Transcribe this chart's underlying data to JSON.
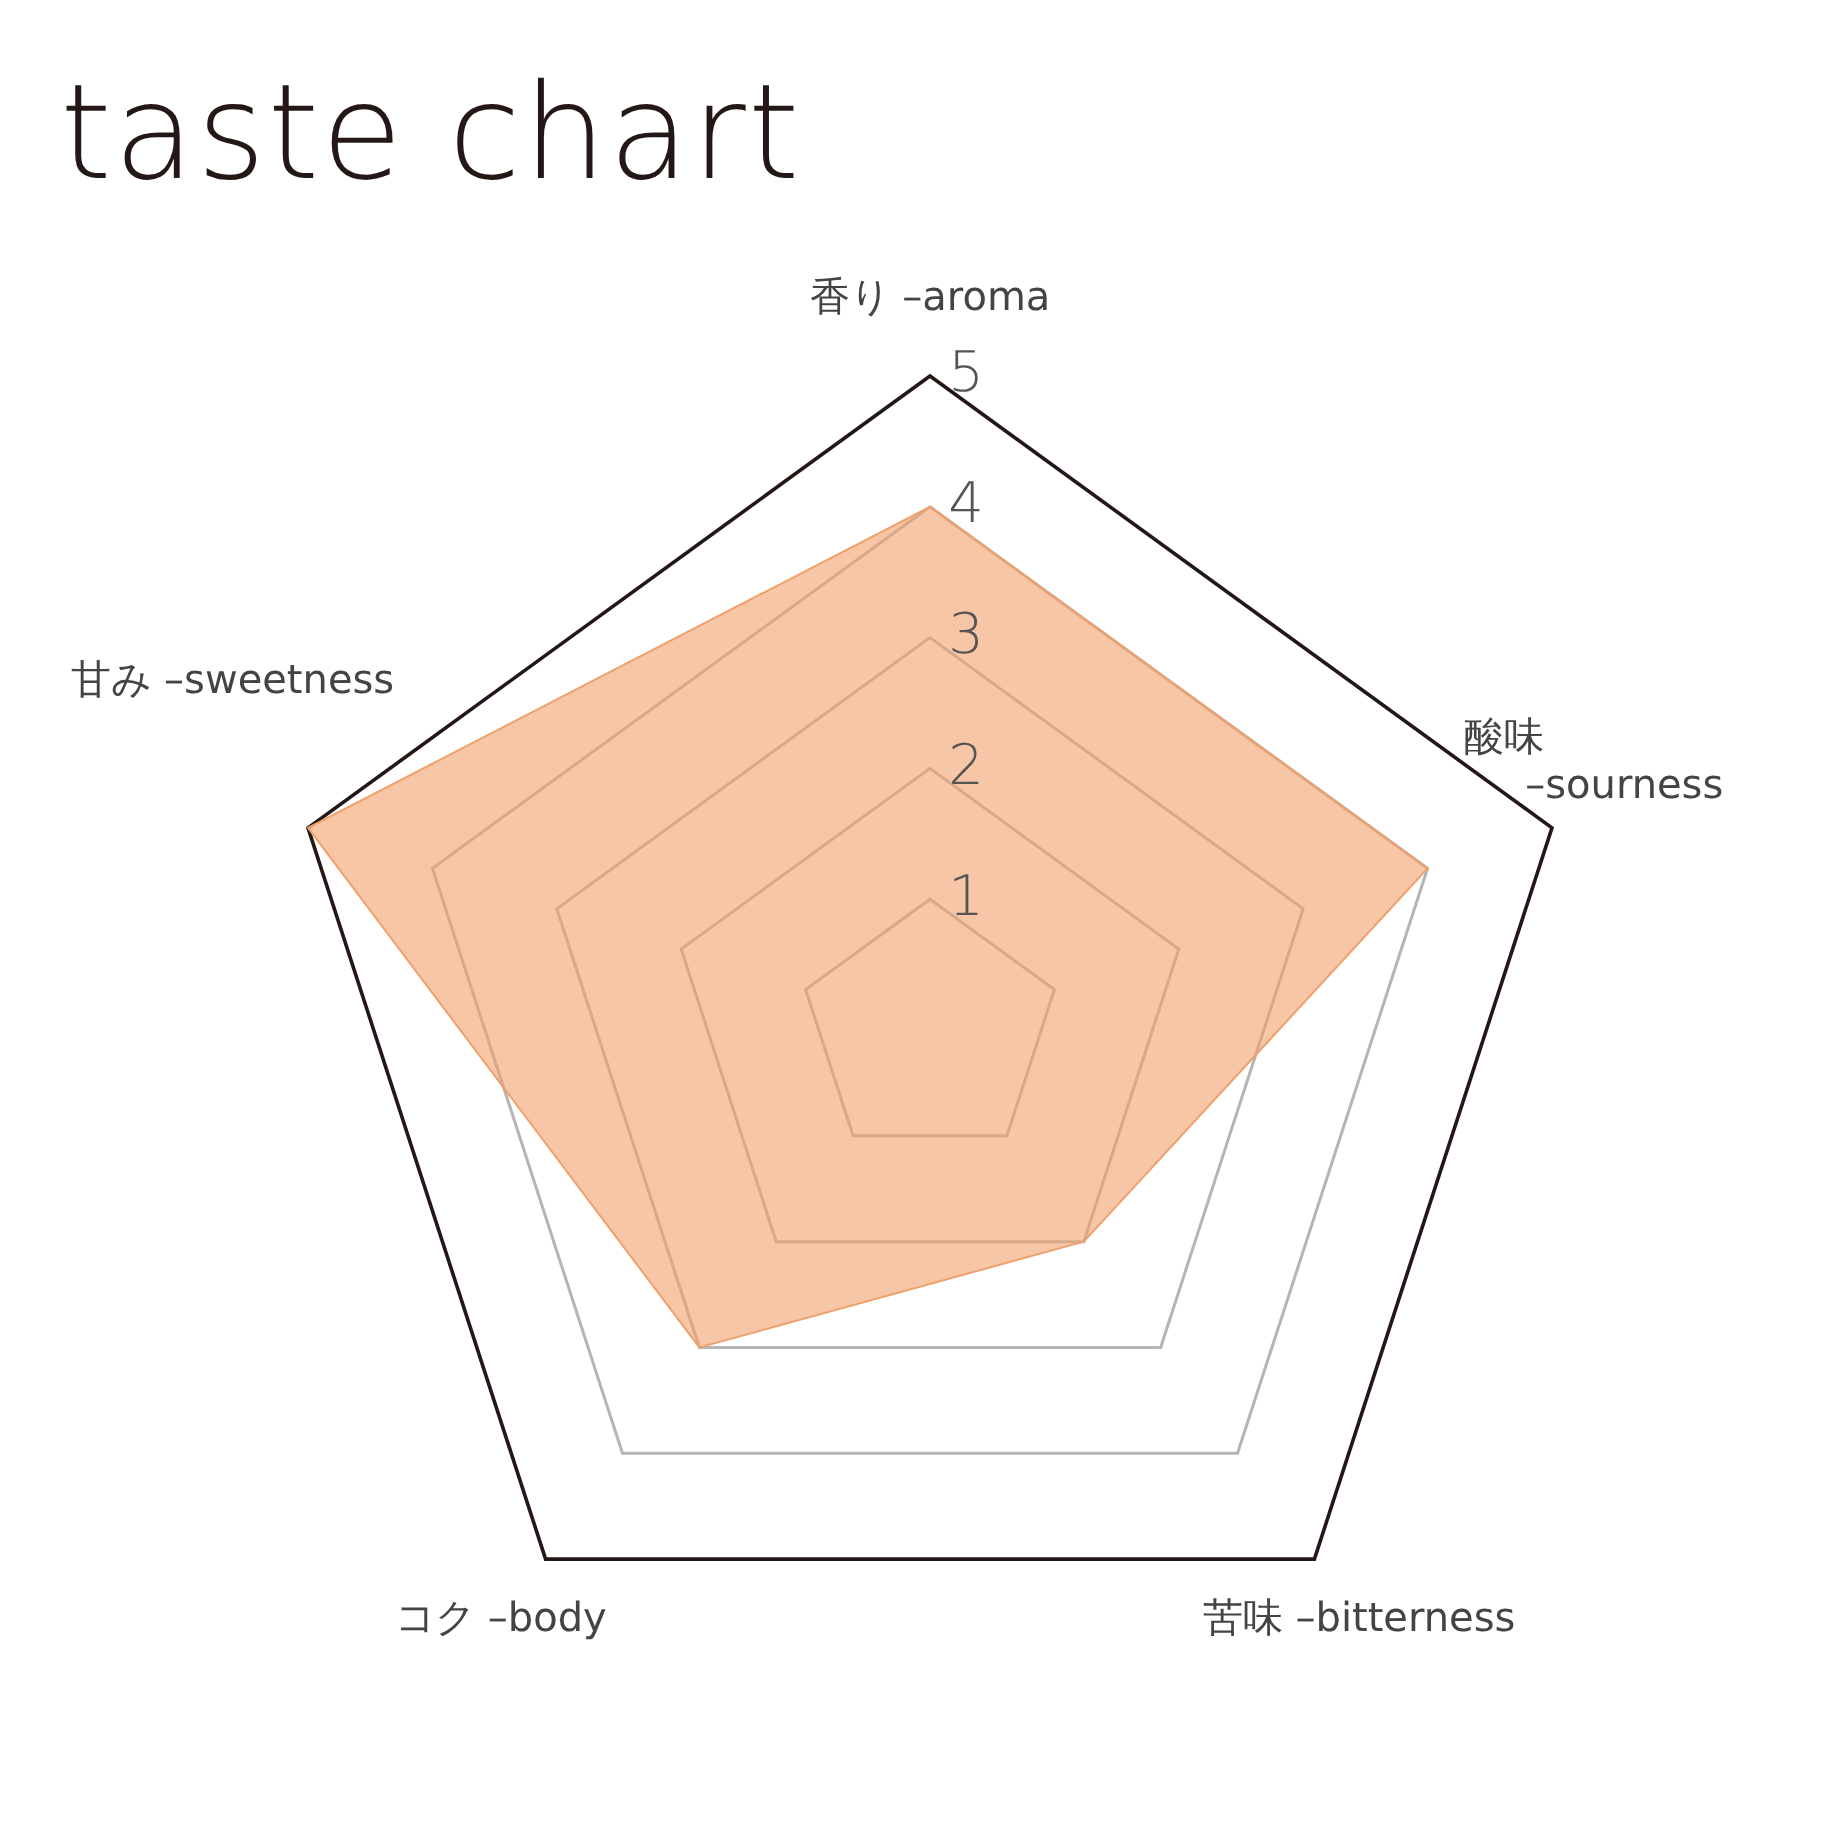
{
  "chart_data": {
    "type": "radar",
    "title": "taste chart",
    "categories": [
      "香り –aroma",
      "酸味 –sourness",
      "苦味 –bitterness",
      "コク –body",
      "甘み –sweetness"
    ],
    "series": [
      {
        "color": "#f0a06a",
        "values": [
          4,
          4,
          2,
          3,
          5
        ]
      }
    ],
    "ylim": [
      0,
      5
    ],
    "yticks": [
      1,
      2,
      3,
      4,
      5
    ],
    "grid": true
  }
}
